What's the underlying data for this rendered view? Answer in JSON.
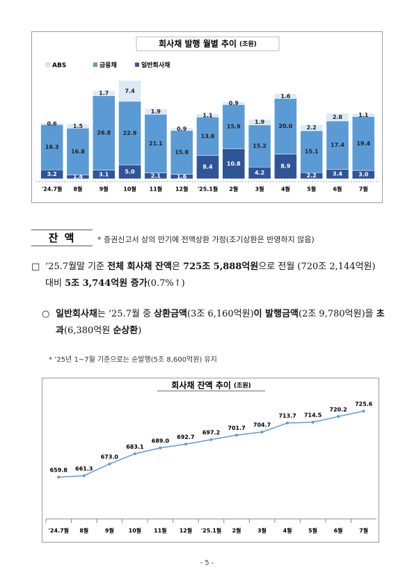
{
  "chart_data": [
    {
      "type": "stacked-bar",
      "title": "회사채 발행 월별 추이",
      "unit": "(조원)",
      "categories": [
        "'24.7월",
        "8월",
        "9월",
        "10월",
        "11월",
        "12월",
        "'25.1월",
        "2월",
        "3월",
        "4월",
        "5월",
        "6월",
        "7월"
      ],
      "series": [
        {
          "name": "일반회사채",
          "color": "#2f5597",
          "values": [
            3.2,
            1.4,
            3.1,
            5.0,
            2.1,
            1.6,
            8.4,
            10.8,
            4.2,
            8.9,
            2.2,
            3.4,
            3.0
          ],
          "value_labels": [
            "3.2",
            "1.4",
            "3.1",
            "5.0",
            "2.1",
            "1.6",
            "8.4",
            "10.8",
            "4.2",
            "8.9",
            "2.2",
            "3.4",
            "3.0"
          ]
        },
        {
          "name": "금융채",
          "color": "#5b9bd5",
          "values": [
            16.3,
            16.8,
            26.8,
            22.9,
            21.1,
            15.8,
            13.8,
            15.9,
            15.2,
            20.0,
            15.1,
            17.4,
            19.4
          ],
          "value_labels": [
            "16.3",
            "16.8",
            "26.8",
            "22.9",
            "21.1",
            "15.8",
            "13.8",
            "15.9",
            "15.2",
            "20.0",
            "15.1",
            "17.4",
            "19.4"
          ]
        },
        {
          "name": "ABS",
          "color": "#dce9f6",
          "values": [
            0.6,
            1.5,
            1.7,
            7.4,
            1.9,
            0.9,
            1.1,
            0.9,
            1.9,
            1.6,
            2.2,
            2.8,
            1.1
          ],
          "value_labels": [
            "0.6",
            "1.5",
            "1.7",
            "7.4",
            "1.9",
            "0.9",
            "1.1",
            "0.9",
            "1.9",
            "1.6",
            "2.2",
            "2.8",
            "1.1"
          ]
        }
      ]
    },
    {
      "type": "line",
      "title": "회사채 잔액 추이",
      "unit": "(조원)",
      "color": "#5b9bd5",
      "categories": [
        "'24.7월",
        "8월",
        "9월",
        "10월",
        "11월",
        "12월",
        "'25.1월",
        "2월",
        "3월",
        "4월",
        "5월",
        "6월",
        "7월"
      ],
      "values": [
        659.8,
        661.3,
        673.0,
        683.1,
        689.0,
        692.7,
        697.2,
        701.7,
        704.7,
        713.7,
        714.5,
        720.2,
        725.6
      ],
      "value_labels": [
        "659.8",
        "661.3",
        "673.0",
        "683.1",
        "689.0",
        "692.7",
        "697.2",
        "701.7",
        "704.7",
        "713.7",
        "714.5",
        "720.2",
        "725.6"
      ]
    }
  ],
  "document": {
    "section": "잔 액",
    "section_note": "* 증권신고서 상의 만기에 전액상환 가정(조기상환은 반영하지 않음)",
    "paragraphs": [
      {
        "marker": "□",
        "segments": [
          {
            "text": "’25.7월말 기준 ",
            "bold": false
          },
          {
            "text": "전체 회사채 잔액",
            "bold": true
          },
          {
            "text": "은 ",
            "bold": false
          },
          {
            "text": "725조 5,888억원",
            "bold": true
          },
          {
            "text": "으로 전월 (720조 2,144억원) 대비 ",
            "bold": false
          },
          {
            "text": "5조 3,744억원 증가",
            "bold": true
          },
          {
            "text": "(0.7%↑)",
            "bold": false
          }
        ]
      },
      {
        "marker": "○",
        "segments": [
          {
            "text": "일반회사채",
            "bold": true
          },
          {
            "text": "는 ’25.7월 중 ",
            "bold": false
          },
          {
            "text": "상환금액",
            "bold": true
          },
          {
            "text": "(3조 6,160억원)",
            "bold": false
          },
          {
            "text": "이 발행금액",
            "bold": true
          },
          {
            "text": "(2조 9,780억원)을 ",
            "bold": false
          },
          {
            "text": "초과",
            "bold": true
          },
          {
            "text": "(6,380억원 ",
            "bold": false
          },
          {
            "text": "순상환",
            "bold": true
          },
          {
            "text": ")",
            "bold": false
          }
        ]
      }
    ],
    "footnote": "* ’25년 1~7월 기준으로는 순발행(5조 8,600억원) 유지",
    "page_number": "- 5 -"
  }
}
